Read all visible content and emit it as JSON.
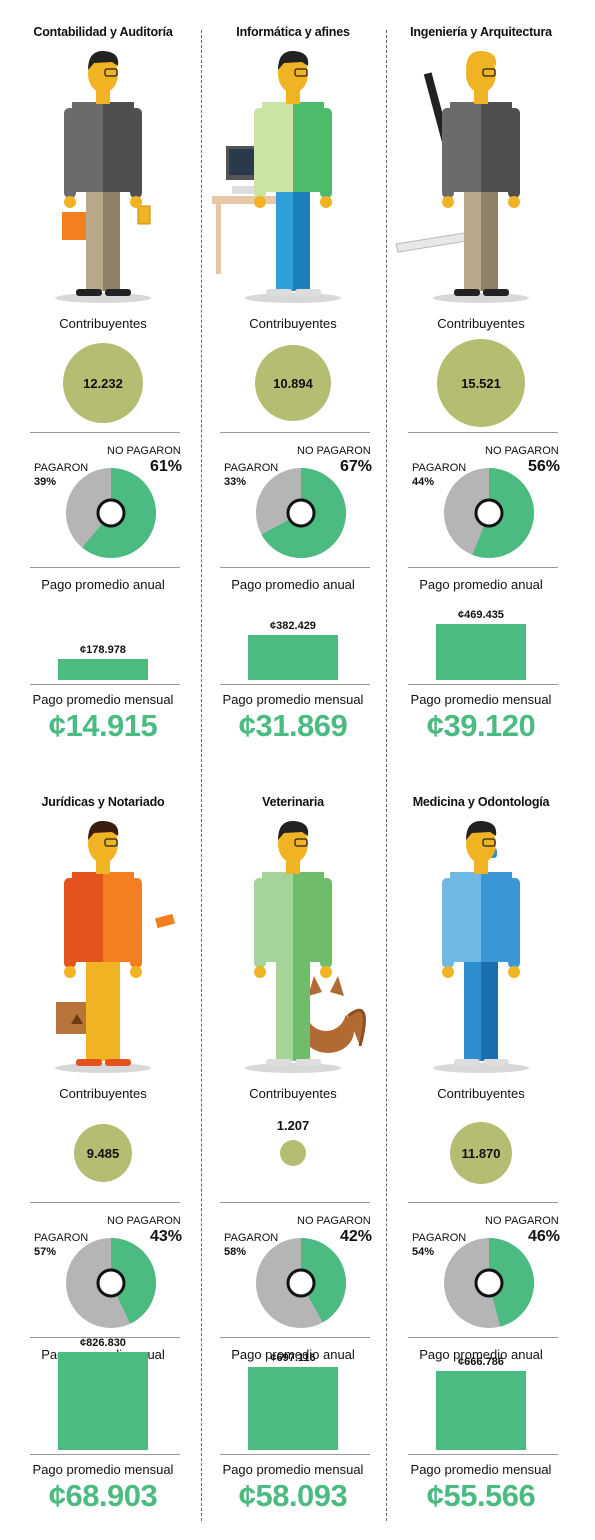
{
  "labels": {
    "contribuyentes": "Contribuyentes",
    "no_pagaron": "NO PAGARON",
    "pagaron": "PAGARON",
    "pago_anual": "Pago promedio anual",
    "pago_mensual": "Pago promedio mensual"
  },
  "colors": {
    "green": "#4cbb82",
    "grey": "#b5b5b5",
    "olive": "#b5bd73"
  },
  "panels": [
    {
      "title": "Contabilidad y Auditoría",
      "contribuyentes": "12.232",
      "pagaron": "39%",
      "no_pagaron": "61%",
      "anual": "¢178.978",
      "mensual": "¢14.915"
    },
    {
      "title": "Informática y afines",
      "contribuyentes": "10.894",
      "pagaron": "33%",
      "no_pagaron": "67%",
      "anual": "¢382.429",
      "mensual": "¢31.869"
    },
    {
      "title": "Ingeniería y Arquitectura",
      "contribuyentes": "15.521",
      "pagaron": "44%",
      "no_pagaron": "56%",
      "anual": "¢469.435",
      "mensual": "¢39.120"
    },
    {
      "title": "Jurídicas y Notariado",
      "contribuyentes": "9.485",
      "pagaron": "57%",
      "no_pagaron": "43%",
      "anual": "¢826.830",
      "mensual": "¢68.903"
    },
    {
      "title": "Veterinaria",
      "contribuyentes": "1.207",
      "pagaron": "58%",
      "no_pagaron": "42%",
      "anual": "¢697.116",
      "mensual": "¢58.093"
    },
    {
      "title": "Medicina y Odontología",
      "contribuyentes": "11.870",
      "pagaron": "54%",
      "no_pagaron": "46%",
      "anual": "¢666.786",
      "mensual": "¢55.566"
    }
  ],
  "chart_data": {
    "type": "bar",
    "categories": [
      "Contabilidad y Auditoría",
      "Informática y afines",
      "Ingeniería y Arquitectura",
      "Jurídicas y Notariado",
      "Veterinaria",
      "Medicina y Odontología"
    ],
    "series": [
      {
        "name": "Pago promedio anual",
        "values": [
          178978,
          382429,
          469435,
          826830,
          697116,
          666786
        ]
      },
      {
        "name": "Pago promedio mensual",
        "values": [
          14915,
          31869,
          39120,
          68903,
          58093,
          55566
        ]
      },
      {
        "name": "Contribuyentes",
        "values": [
          12232,
          10894,
          15521,
          9485,
          1207,
          11870
        ]
      },
      {
        "name": "NO PAGARON",
        "values": [
          61,
          67,
          56,
          43,
          42,
          46
        ]
      },
      {
        "name": "PAGARON",
        "values": [
          39,
          33,
          44,
          57,
          58,
          54
        ]
      }
    ]
  }
}
